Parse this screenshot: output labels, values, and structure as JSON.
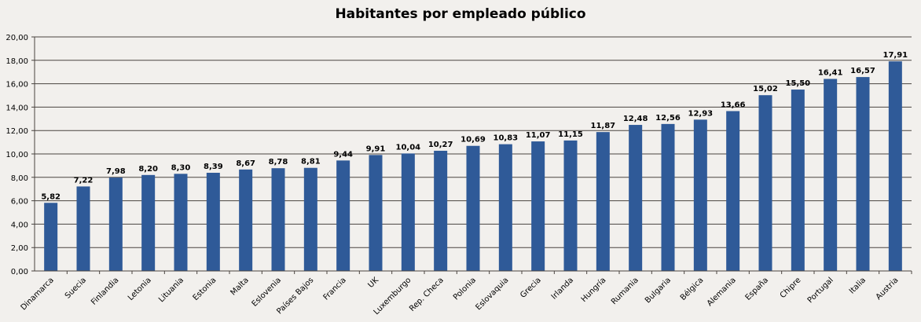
{
  "chart_data": {
    "type": "bar",
    "title": "Habitantes por empleado público",
    "xlabel": "",
    "ylabel": "",
    "ylim": [
      0,
      20
    ],
    "yticks": [
      "0,00",
      "2,00",
      "4,00",
      "6,00",
      "8,00",
      "10,00",
      "12,00",
      "14,00",
      "16,00",
      "18,00",
      "20,00"
    ],
    "grid": true,
    "legend": "none",
    "bar_color": "#2f5a98",
    "categories": [
      "Dinamarca",
      "Suecia",
      "Finlandia",
      "Letonia",
      "Lituania",
      "Estonia",
      "Malta",
      "Eslovenia",
      "Países Bajos",
      "Francia",
      "UK",
      "Luxemburgo",
      "Rep. Checa",
      "Polonia",
      "Eslovaquia",
      "Grecia",
      "Irlanda",
      "Hungría",
      "Rumania",
      "Bulgaria",
      "Bélgica",
      "Alemania",
      "España",
      "Chipre",
      "Portugal",
      "Italia",
      "Austria"
    ],
    "values": [
      5.82,
      7.22,
      7.98,
      8.2,
      8.3,
      8.39,
      8.67,
      8.78,
      8.81,
      9.44,
      9.91,
      10.04,
      10.27,
      10.69,
      10.83,
      11.07,
      11.15,
      11.87,
      12.48,
      12.56,
      12.93,
      13.66,
      15.02,
      15.5,
      16.41,
      16.57,
      17.91
    ],
    "data_labels": [
      "5,82",
      "7,22",
      "7,98",
      "8,20",
      "8,30",
      "8,39",
      "8,67",
      "8,78",
      "8,81",
      "9,44",
      "9,91",
      "10,04",
      "10,27",
      "10,69",
      "10,83",
      "11,07",
      "11,15",
      "11,87",
      "12,48",
      "12,56",
      "12,93",
      "13,66",
      "15,02",
      "15,50",
      "16,41",
      "16,57",
      "17,91"
    ]
  }
}
